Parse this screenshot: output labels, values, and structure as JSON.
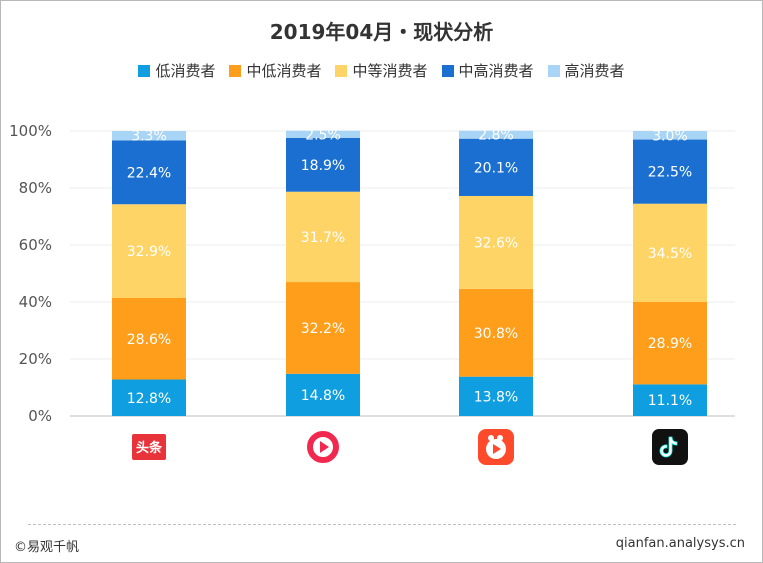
{
  "chart_data": {
    "type": "bar",
    "stacked": true,
    "title": "2019年04月・现状分析",
    "categories": [
      "今日头条",
      "全民小视频",
      "快手",
      "抖音"
    ],
    "series": [
      {
        "name": "低消费者",
        "color": "#0f9ee0",
        "values": [
          12.8,
          14.8,
          13.8,
          11.1
        ]
      },
      {
        "name": "中低消费者",
        "color": "#ff9e1b",
        "values": [
          28.6,
          32.2,
          30.8,
          28.9
        ]
      },
      {
        "name": "中等消费者",
        "color": "#ffd466",
        "values": [
          32.9,
          31.7,
          32.6,
          34.5
        ]
      },
      {
        "name": "中高消费者",
        "color": "#1a6fd0",
        "values": [
          22.4,
          18.9,
          20.1,
          22.5
        ]
      },
      {
        "name": "高消费者",
        "color": "#a8d4f5",
        "values": [
          3.3,
          2.5,
          2.8,
          3.0
        ]
      }
    ],
    "ylim": [
      0,
      100
    ],
    "yticks": [
      "0%",
      "20%",
      "40%",
      "60%",
      "80%",
      "100%"
    ],
    "value_suffix": "%",
    "legend_position": "top",
    "grid": true
  },
  "logos": [
    {
      "icon": "toutiao-logo-icon",
      "text": "头条",
      "color": "#e8333a"
    },
    {
      "icon": "quanmin-logo-icon",
      "color": "#f2294f"
    },
    {
      "icon": "kuaishou-logo-icon",
      "color": "#ff4b2b"
    },
    {
      "icon": "douyin-logo-icon",
      "color": "#111111"
    }
  ],
  "footer": {
    "left": "©易观千帆",
    "right": "qianfan.analysys.cn"
  }
}
